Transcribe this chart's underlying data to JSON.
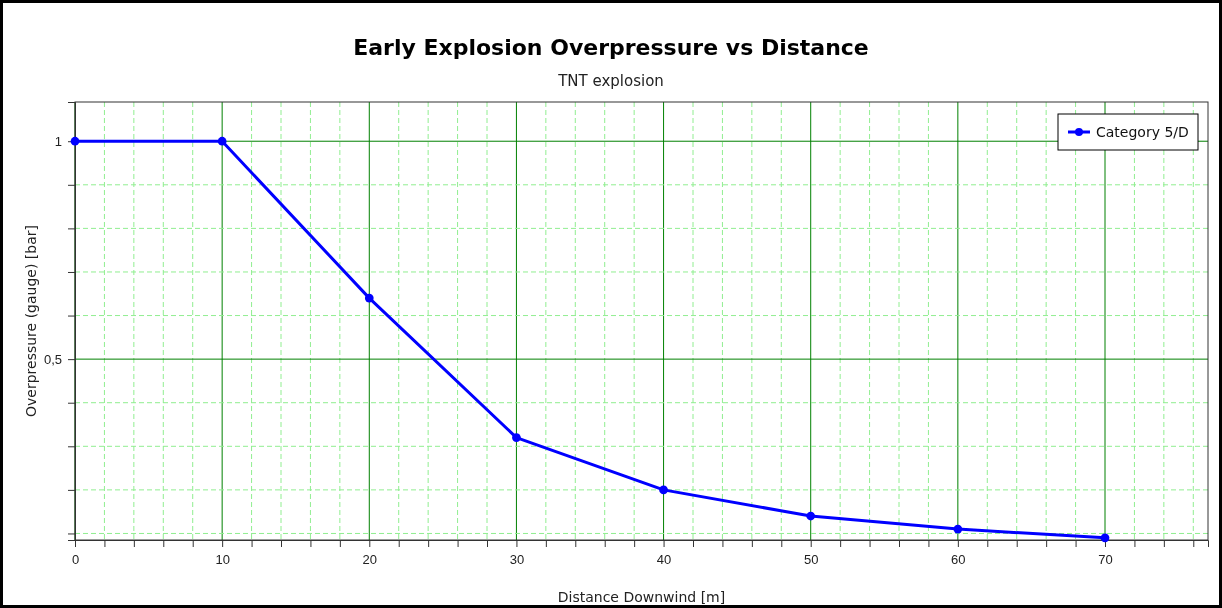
{
  "chart_data": {
    "type": "line",
    "title": "Early Explosion Overpressure vs Distance",
    "subtitle": "TNT explosion",
    "xlabel": "Distance Downwind [m]",
    "ylabel": "Overpressure (gauge) [bar]",
    "x": [
      0,
      10,
      20,
      30,
      40,
      50,
      60,
      70
    ],
    "series": [
      {
        "name": "Category 5/D",
        "color": "#0000ff",
        "values": [
          1,
          1,
          0.64,
          0.32,
          0.2,
          0.14,
          0.11,
          0.09
        ]
      }
    ],
    "xlim": [
      0,
      77
    ],
    "ylim": [
      0.085,
      1.09
    ],
    "xticks": [
      0,
      {
        "value": 2,
        "label": null
      },
      {
        "value": 4,
        "label": null
      },
      {
        "value": 6,
        "label": null
      },
      {
        "value": 8,
        "label": null
      },
      10,
      {
        "value": 12,
        "label": null
      },
      {
        "value": 14,
        "label": null
      },
      {
        "value": 16,
        "label": null
      },
      {
        "value": 18,
        "label": null
      },
      20,
      {
        "value": 22,
        "label": null
      },
      {
        "value": 24,
        "label": null
      },
      {
        "value": 26,
        "label": null
      },
      {
        "value": 28,
        "label": null
      },
      30,
      {
        "value": 32,
        "label": null
      },
      {
        "value": 34,
        "label": null
      },
      {
        "value": 36,
        "label": null
      },
      {
        "value": 38,
        "label": null
      },
      40,
      {
        "value": 42,
        "label": null
      },
      {
        "value": 44,
        "label": null
      },
      {
        "value": 46,
        "label": null
      },
      {
        "value": 48,
        "label": null
      },
      50,
      {
        "value": 52,
        "label": null
      },
      {
        "value": 54,
        "label": null
      },
      {
        "value": 56,
        "label": null
      },
      {
        "value": 58,
        "label": null
      },
      60,
      {
        "value": 62,
        "label": null
      },
      {
        "value": 64,
        "label": null
      },
      {
        "value": 66,
        "label": null
      },
      {
        "value": 68,
        "label": null
      },
      70,
      {
        "value": 72,
        "label": null
      },
      {
        "value": 74,
        "label": null
      },
      {
        "value": 76,
        "label": null
      }
    ],
    "yticks": [
      {
        "value": 0.1,
        "label": null
      },
      {
        "value": 0.2,
        "label": null
      },
      {
        "value": 0.3,
        "label": null
      },
      {
        "value": 0.4,
        "label": null
      },
      {
        "value": 0.5,
        "label": "0,5"
      },
      {
        "value": 0.6,
        "label": null
      },
      {
        "value": 0.7,
        "label": null
      },
      {
        "value": 0.8,
        "label": null
      },
      {
        "value": 0.9,
        "label": null
      },
      1
    ],
    "grid": true,
    "legend": "top right",
    "marker": "circle",
    "line_style": "solid"
  }
}
